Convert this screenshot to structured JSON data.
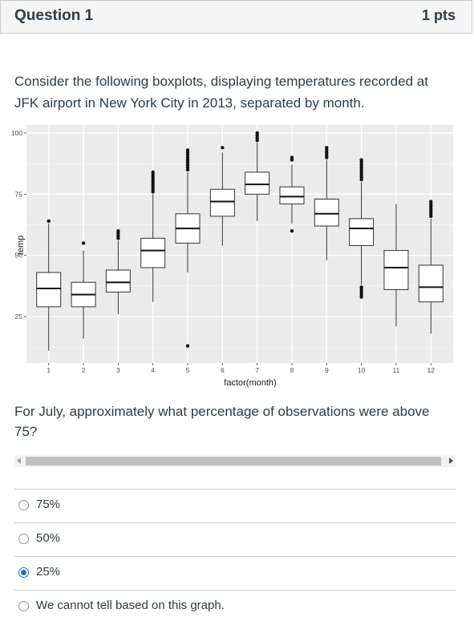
{
  "question": {
    "title": "Question 1",
    "points": "1 pts",
    "text": "Consider the following boxplots, displaying temperatures recorded at JFK airport in New York City in 2013, separated by month.",
    "prompt": "For July, approximately what percentage of observations were above 75?"
  },
  "answers": [
    {
      "label": "75%",
      "selected": false
    },
    {
      "label": "50%",
      "selected": false
    },
    {
      "label": "25%",
      "selected": true
    },
    {
      "label": "We cannot tell based on this graph.",
      "selected": false
    }
  ],
  "colors": {
    "accent": "#1f6fbf",
    "panel": "#ebebeb",
    "grid": "#ffffff",
    "text": "#2d3b45"
  },
  "chart_data": {
    "type": "boxplot",
    "xlabel": "factor(month)",
    "ylabel": "temp",
    "ylim": [
      8,
      100
    ],
    "yticks": [
      25,
      50,
      75,
      100
    ],
    "grid": true,
    "categories": [
      "1",
      "2",
      "3",
      "4",
      "5",
      "6",
      "7",
      "8",
      "9",
      "10",
      "11",
      "12"
    ],
    "boxes": [
      {
        "month": "1",
        "min": 11,
        "q1": 29,
        "median": 36.5,
        "q3": 43,
        "max": 63,
        "outliers": [
          64
        ]
      },
      {
        "month": "2",
        "min": 16,
        "q1": 29,
        "median": 34,
        "q3": 39,
        "max": 52,
        "outliers": [
          55
        ]
      },
      {
        "month": "3",
        "min": 26,
        "q1": 35,
        "median": 39,
        "q3": 44,
        "max": 56,
        "outliers": [
          57,
          58,
          59,
          60
        ]
      },
      {
        "month": "4",
        "min": 31,
        "q1": 45,
        "median": 52,
        "q3": 57,
        "max": 75,
        "outliers": [
          76,
          77,
          78,
          79,
          80,
          81,
          82,
          83,
          84
        ]
      },
      {
        "month": "5",
        "min": 43,
        "q1": 55,
        "median": 61,
        "q3": 67,
        "max": 84,
        "outliers": [
          13,
          85,
          86,
          87,
          88,
          89,
          90,
          91,
          92,
          93
        ]
      },
      {
        "month": "6",
        "min": 54,
        "q1": 66,
        "median": 72,
        "q3": 77,
        "max": 92,
        "outliers": [
          94
        ]
      },
      {
        "month": "7",
        "min": 64,
        "q1": 75,
        "median": 79,
        "q3": 84,
        "max": 96,
        "outliers": [
          97,
          98,
          99,
          100
        ]
      },
      {
        "month": "8",
        "min": 63,
        "q1": 71,
        "median": 74,
        "q3": 78,
        "max": 87,
        "outliers": [
          60,
          89,
          90
        ]
      },
      {
        "month": "9",
        "min": 48,
        "q1": 62,
        "median": 67,
        "q3": 73,
        "max": 89,
        "outliers": [
          90,
          91,
          92,
          93,
          94
        ]
      },
      {
        "month": "10",
        "min": 38,
        "q1": 54,
        "median": 61,
        "q3": 65,
        "max": 80,
        "outliers": [
          33,
          34,
          35,
          36,
          37,
          81,
          82,
          83,
          84,
          85,
          86,
          87,
          88,
          89
        ]
      },
      {
        "month": "11",
        "min": 21,
        "q1": 36,
        "median": 45,
        "q3": 52,
        "max": 71,
        "outliers": []
      },
      {
        "month": "12",
        "min": 18,
        "q1": 31,
        "median": 37,
        "q3": 46,
        "max": 65,
        "outliers": [
          66,
          67,
          68,
          69,
          70,
          71,
          72
        ]
      }
    ]
  }
}
